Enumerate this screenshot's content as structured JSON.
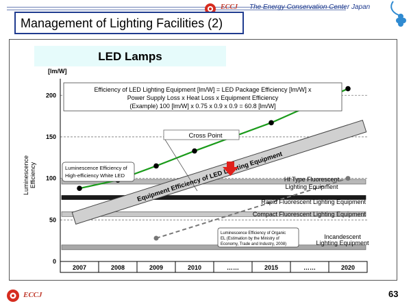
{
  "header": {
    "org_brand": "ECCJ",
    "org_name": "The Energy Conservation Center Japan"
  },
  "slide": {
    "title": "Management of Lighting Facilities (2)",
    "page_number": "63",
    "footer_brand": "ECCJ"
  },
  "chart_data": {
    "type": "line",
    "title": "LED Lamps",
    "ylabel_unit": "[lm/W]",
    "ylabel": "Luminescence Efficiency",
    "ylim": [
      0,
      220
    ],
    "yticks": [
      "0",
      "50",
      "100",
      "150",
      "200"
    ],
    "categories": [
      "2007",
      "2008",
      "2009",
      "2010",
      "……",
      "2015",
      "……",
      "2020"
    ],
    "formula_lines": [
      "Efficiency of LED Lighting Equipment [lm/W] = LED Package Efficiency [lm/W] x",
      "Power Supply Loss x Heat Loss x Equipment Efficiency",
      "(Example) 100 [lm/W] x 0.75 x 0.9 x 0.9 = 60.8 [lm/W]"
    ],
    "series": [
      {
        "name": "Luminescence Efficiency of High-efficiency White LED",
        "label_lines": [
          "Luminescence Efficiency of",
          "High-efficiency White LED"
        ],
        "color": "#1a9b1a",
        "values": [
          88,
          98,
          115,
          133,
          null,
          167,
          null,
          208
        ]
      },
      {
        "name": "Luminescence Efficiency of Organic EL",
        "label_lines": [
          "Luminescence Efficiency of Organic",
          "EL (Estimation by the Ministry of",
          "Economy, Trade and Industry, 2008)"
        ],
        "color": "#777777",
        "values": [
          null,
          null,
          28,
          null,
          null,
          null,
          null,
          100
        ]
      }
    ],
    "bands": [
      {
        "name": "Hf Type Fluorescent Lighting Equipment",
        "label_lines": [
          "Hf Type Fluorescent",
          "Lighting Equipment"
        ],
        "value": 96
      },
      {
        "name": "Rapid Fluorescent Lighting Equipment",
        "label_lines": [
          "Rapid Fluorescent Lighting Equipment"
        ],
        "value": 77
      },
      {
        "name": "Compact Fluorescent Lighting Equipment",
        "label_lines": [
          "Compact Fluorescent Lighting Equipment"
        ],
        "value": 57
      },
      {
        "name": "Incandescent Lighting Equipment",
        "label_lines": [
          "Incandescent",
          "Lighting Equipment"
        ],
        "value": 17
      }
    ],
    "trend_band": {
      "label": "Equipment Efficiency of LED Lighting Equipment",
      "start": 52,
      "end": 163
    },
    "callout": "Cross Point",
    "accent_colors": {
      "led_line": "#1a9b1a",
      "arrow": "#e0201b",
      "title_bg": "#e6fbfb"
    }
  }
}
